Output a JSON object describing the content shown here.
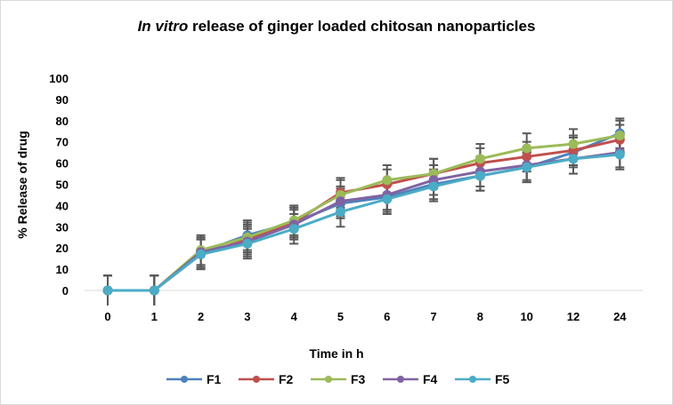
{
  "chart_data": {
    "type": "line",
    "title_italic": "In vitro",
    "title_rest": " release of  ginger  loaded chitosan nanoparticles",
    "xlabel": "Time in h",
    "ylabel": "% Release of drug",
    "categories": [
      "0",
      "1",
      "2",
      "3",
      "4",
      "5",
      "6",
      "7",
      "8",
      "10",
      "12",
      "24"
    ],
    "ylim": [
      0,
      100
    ],
    "yticks": [
      0,
      10,
      20,
      30,
      40,
      50,
      60,
      70,
      80,
      90,
      100
    ],
    "legend_position": "bottom",
    "error_bar": 7,
    "series": [
      {
        "name": "F1",
        "color": "#4f81bd",
        "values": [
          0,
          0,
          18,
          26,
          32,
          41,
          44,
          50,
          54,
          58,
          65,
          74
        ]
      },
      {
        "name": "F2",
        "color": "#c0504d",
        "values": [
          0,
          0,
          17,
          24,
          32,
          46,
          50,
          55,
          60,
          63,
          66,
          71
        ]
      },
      {
        "name": "F3",
        "color": "#9bbb59",
        "values": [
          0,
          0,
          19,
          25,
          33,
          45,
          52,
          55,
          62,
          67,
          69,
          73
        ]
      },
      {
        "name": "F4",
        "color": "#8064a2",
        "values": [
          0,
          0,
          18,
          23,
          31,
          42,
          45,
          52,
          56,
          59,
          62,
          65
        ]
      },
      {
        "name": "F5",
        "color": "#4bacc6",
        "values": [
          0,
          0,
          17,
          22,
          29,
          37,
          43,
          49,
          54,
          58,
          62,
          64
        ]
      }
    ]
  }
}
